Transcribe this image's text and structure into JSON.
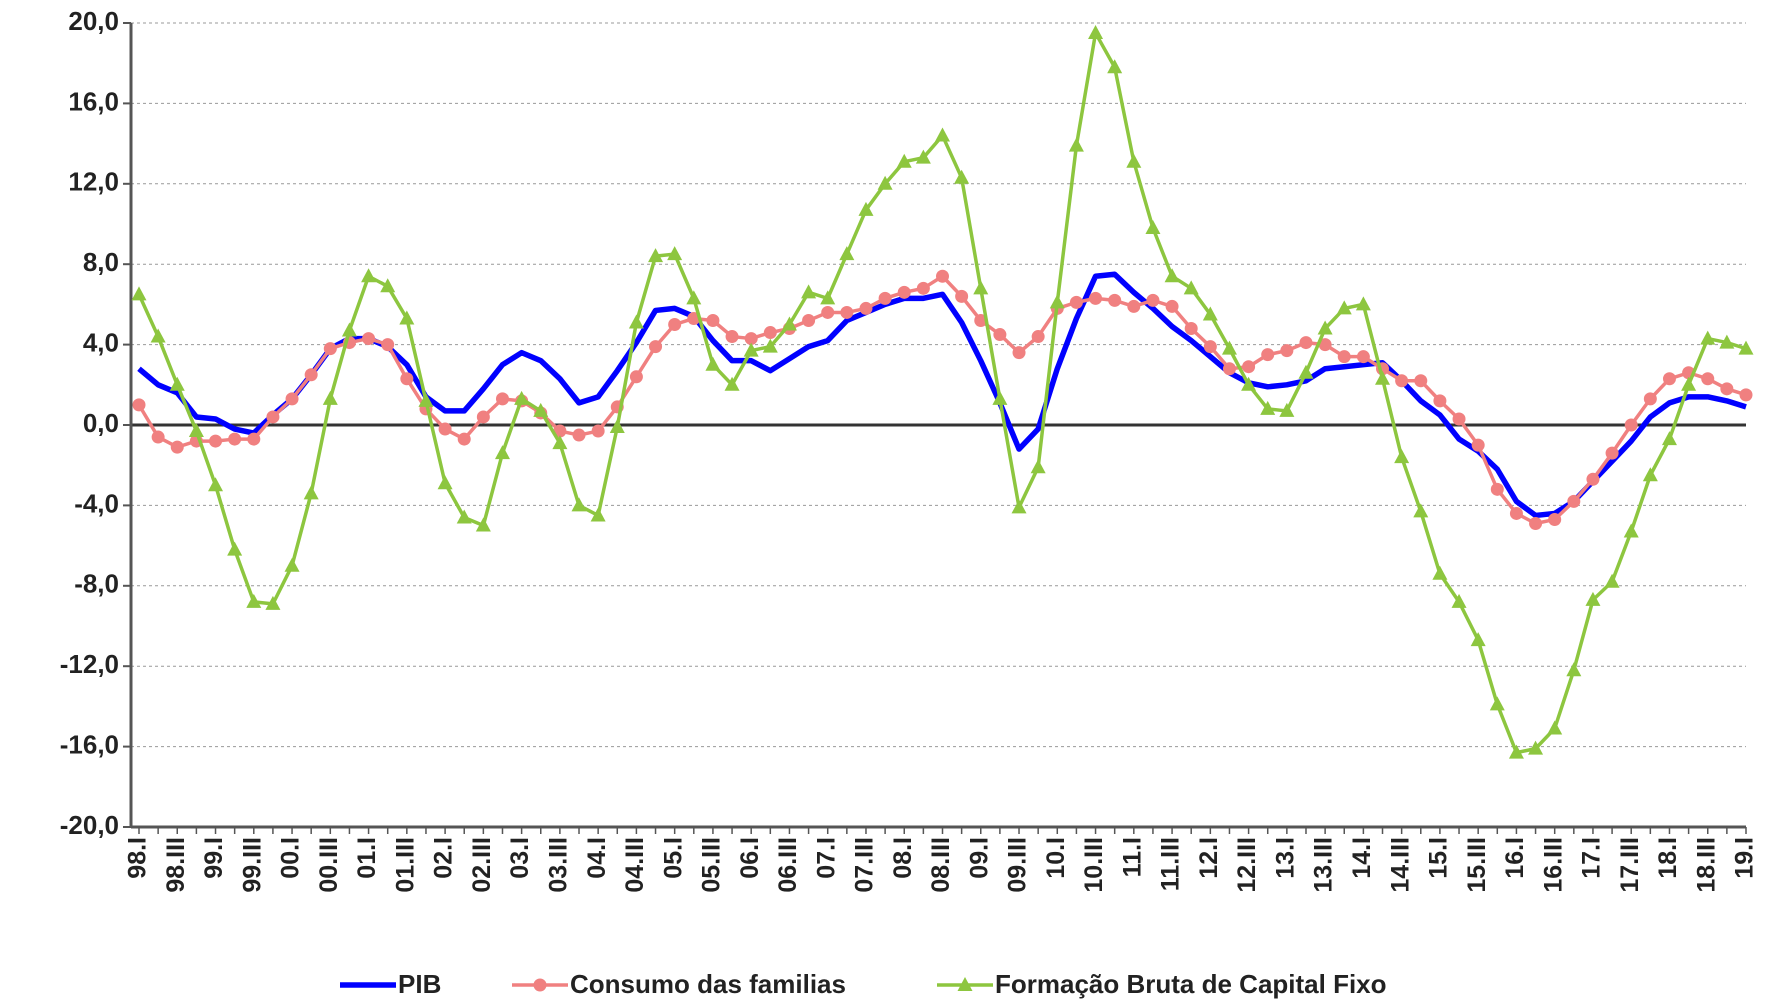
{
  "chart_data": {
    "type": "line",
    "categories": [
      "98.I",
      null,
      "98.III",
      null,
      "99.I",
      null,
      "99.III",
      null,
      "00.I",
      null,
      "00.III",
      null,
      "01.I",
      null,
      "01.III",
      null,
      "02.I",
      null,
      "02.III",
      null,
      "03.I",
      null,
      "03.III",
      null,
      "04.I",
      null,
      "04.III",
      null,
      "05.I",
      null,
      "05.III",
      null,
      "06.I",
      null,
      "06.III",
      null,
      "07.I",
      null,
      "07.III",
      null,
      "08.I",
      null,
      "08.III",
      null,
      "09.I",
      null,
      "09.III",
      null,
      "10.I",
      null,
      "10.III",
      null,
      "11.I",
      null,
      "11.III",
      null,
      "12.I",
      null,
      "12.III",
      null,
      "13.I",
      null,
      "13.III",
      null,
      "14.I",
      null,
      "14.III",
      null,
      "15.I",
      null,
      "15.III",
      null,
      "16.I",
      null,
      "16.III",
      null,
      "17.I",
      null,
      "17.III",
      null,
      "18.I",
      null,
      "18.III",
      null,
      "19.I"
    ],
    "series": [
      {
        "name": "PIB",
        "color": "#0000ff",
        "marker": "none",
        "values": [
          2.8,
          2.0,
          1.6,
          0.4,
          0.3,
          -0.2,
          -0.4,
          0.5,
          1.3,
          2.5,
          3.8,
          4.3,
          4.3,
          3.9,
          3.0,
          1.4,
          0.7,
          0.7,
          1.8,
          3.0,
          3.6,
          3.2,
          2.3,
          1.1,
          1.4,
          2.7,
          4.1,
          5.7,
          5.8,
          5.4,
          4.2,
          3.2,
          3.2,
          2.7,
          3.3,
          3.9,
          4.2,
          5.2,
          5.6,
          6.0,
          6.3,
          6.3,
          6.5,
          5.1,
          3.2,
          1.1,
          -1.2,
          -0.2,
          2.8,
          5.3,
          7.4,
          7.5,
          6.6,
          5.8,
          4.9,
          4.2,
          3.4,
          2.6,
          2.1,
          1.9,
          2.0,
          2.2,
          2.8,
          2.9,
          3.0,
          3.1,
          2.2,
          1.2,
          0.5,
          -0.7,
          -1.3,
          -2.2,
          -3.8,
          -4.5,
          -4.4,
          -3.8,
          -2.8,
          -1.8,
          -0.8,
          0.4,
          1.1,
          1.4,
          1.4,
          1.2,
          0.9
        ]
      },
      {
        "name": "Consumo das familias",
        "color": "#f08080",
        "marker": "circle",
        "values": [
          1.0,
          -0.6,
          -1.1,
          -0.8,
          -0.8,
          -0.7,
          -0.7,
          0.4,
          1.3,
          2.5,
          3.8,
          4.1,
          4.3,
          4.0,
          2.3,
          0.8,
          -0.2,
          -0.7,
          0.4,
          1.3,
          1.2,
          0.6,
          -0.3,
          -0.5,
          -0.3,
          0.9,
          2.4,
          3.9,
          5.0,
          5.3,
          5.2,
          4.4,
          4.3,
          4.6,
          4.8,
          5.2,
          5.6,
          5.6,
          5.8,
          6.3,
          6.6,
          6.8,
          7.4,
          6.4,
          5.2,
          4.5,
          3.6,
          4.4,
          5.8,
          6.1,
          6.3,
          6.2,
          5.9,
          6.2,
          5.9,
          4.8,
          3.9,
          2.8,
          2.9,
          3.5,
          3.7,
          4.1,
          4.0,
          3.4,
          3.4,
          2.8,
          2.2,
          2.2,
          1.2,
          0.3,
          -1.0,
          -3.2,
          -4.4,
          -4.9,
          -4.7,
          -3.8,
          -2.7,
          -1.4,
          0.0,
          1.3,
          2.3,
          2.6,
          2.3,
          1.8,
          1.5
        ]
      },
      {
        "name": "Formação Bruta de Capital Fixo",
        "color": "#8dc63f",
        "marker": "triangle",
        "values": [
          6.5,
          4.4,
          2.0,
          -0.3,
          -3.0,
          -6.2,
          -8.8,
          -8.9,
          -7.0,
          -3.4,
          1.3,
          4.7,
          7.4,
          6.9,
          5.3,
          1.2,
          -2.9,
          -4.6,
          -5.0,
          -1.4,
          1.3,
          0.7,
          -0.9,
          -4.0,
          -4.5,
          -0.1,
          5.1,
          8.4,
          8.5,
          6.3,
          3.0,
          2.0,
          3.7,
          3.9,
          5.0,
          6.6,
          6.3,
          8.5,
          10.7,
          12.0,
          13.1,
          13.3,
          14.4,
          12.3,
          6.8,
          1.3,
          -4.1,
          -2.1,
          6.1,
          13.9,
          19.5,
          17.8,
          13.1,
          9.8,
          7.4,
          6.8,
          5.5,
          3.8,
          2.0,
          0.8,
          0.7,
          2.6,
          4.8,
          5.8,
          6.0,
          2.3,
          -1.6,
          -4.3,
          -7.4,
          -8.8,
          -10.7,
          -13.9,
          -16.3,
          -16.1,
          -15.1,
          -12.2,
          -8.7,
          -7.8,
          -5.3,
          -2.5,
          -0.7,
          2.0,
          4.3,
          4.1,
          3.8
        ]
      }
    ],
    "ylim": [
      -20,
      20
    ],
    "yticks": [
      {
        "value": -20,
        "label": "-20,0"
      },
      {
        "value": -16,
        "label": "-16,0"
      },
      {
        "value": -12,
        "label": "-12,0"
      },
      {
        "value": -8,
        "label": "-8,0"
      },
      {
        "value": -4,
        "label": "-4,0"
      },
      {
        "value": 0,
        "label": "0,0"
      },
      {
        "value": 4,
        "label": "4,0"
      },
      {
        "value": 8,
        "label": "8,0"
      },
      {
        "value": 12,
        "label": "12,0"
      },
      {
        "value": 16,
        "label": "16,0"
      },
      {
        "value": 20,
        "label": "20,0"
      }
    ],
    "grid": true,
    "legend": "bottom"
  }
}
